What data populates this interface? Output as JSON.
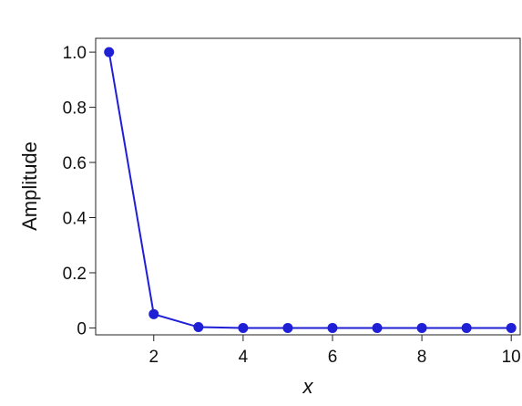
{
  "chart_data": {
    "type": "line",
    "xlabel": "x",
    "ylabel": "Amplitude",
    "xlim": [
      0.7,
      10.2
    ],
    "ylim": [
      -0.025,
      1.05
    ],
    "xticks": [
      2,
      4,
      6,
      8,
      10
    ],
    "yticks": [
      0,
      0.2,
      0.4,
      0.6,
      0.8,
      1.0
    ],
    "ytick_labels": [
      "0",
      "0.2",
      "0.4",
      "0.6",
      "0.8",
      "1.0"
    ],
    "grid": false,
    "series": [
      {
        "color": "#1f1fd6",
        "x": [
          1,
          2,
          3,
          4,
          5,
          6,
          7,
          8,
          9,
          10
        ],
        "y": [
          1.0,
          0.05,
          0.003,
          0.0,
          0.0,
          0.0,
          0.0,
          0.0,
          0.0,
          0.0
        ]
      }
    ]
  }
}
